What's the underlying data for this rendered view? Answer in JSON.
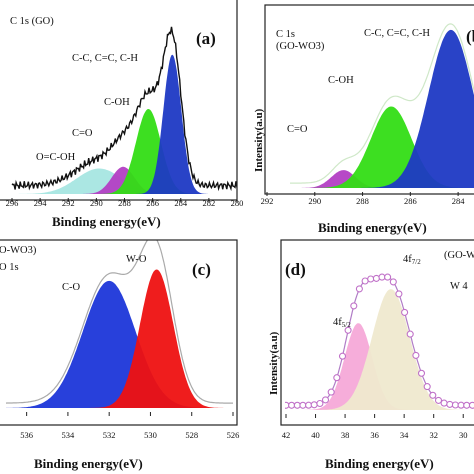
{
  "chart_data": [
    {
      "type": "area",
      "panel_label": "(a)",
      "title": "C 1s (GO)",
      "xlabel": "Binding energy(eV)",
      "ylabel": "",
      "xlim": [
        296,
        280
      ],
      "x_ticks": [
        "296",
        "294",
        "292",
        "290",
        "288",
        "286",
        "284",
        "282",
        "280"
      ],
      "ylim": [
        0,
        1.0
      ],
      "series": [
        {
          "name": "O=C-OH",
          "center": 289.8,
          "height": 0.15,
          "fwhm": 3.8,
          "color": "#a6e6e2"
        },
        {
          "name": "C=O",
          "center": 288.1,
          "height": 0.16,
          "fwhm": 1.9,
          "color": "#b33fc4"
        },
        {
          "name": "C-OH",
          "center": 286.3,
          "height": 0.5,
          "fwhm": 2.1,
          "color": "#33dd15"
        },
        {
          "name": "C-C, C=C, C-H",
          "center": 284.6,
          "height": 0.82,
          "fwhm": 1.5,
          "color": "#1d39c4"
        }
      ],
      "envelope_color": "#111111"
    },
    {
      "type": "area",
      "panel_label": "(b)",
      "title": "C 1s",
      "subtitle": "(GO-WO3)",
      "xlabel": "Binding energy(eV)",
      "ylabel": "Intensity(a.u)",
      "xlim": [
        292,
        283
      ],
      "x_ticks": [
        "292",
        "290",
        "288",
        "286",
        "284"
      ],
      "ylim": [
        0,
        1.0
      ],
      "series": [
        {
          "name": "C=O",
          "center": 288.8,
          "height": 0.11,
          "fwhm": 1.2,
          "color": "#b33fc4"
        },
        {
          "name": "C-OH",
          "center": 286.8,
          "height": 0.5,
          "fwhm": 2.0,
          "color": "#33dd15"
        },
        {
          "name": "C-C, C=C, C-H",
          "center": 284.3,
          "height": 0.97,
          "fwhm": 2.2,
          "color": "#1d39c4"
        }
      ],
      "envelope_color": "#cfe8c8"
    },
    {
      "type": "area",
      "panel_label": "(c)",
      "title": "O-WO3)",
      "subtitle": "O 1s",
      "xlabel": "Binding energy(eV)",
      "ylabel": "",
      "xlim": [
        537,
        526
      ],
      "x_ticks": [
        "536",
        "534",
        "532",
        "530",
        "528",
        "526"
      ],
      "ylim": [
        0,
        1.0
      ],
      "series": [
        {
          "name": "C-O",
          "center": 532.0,
          "height": 0.78,
          "fwhm": 3.0,
          "color": "#1c36d9"
        },
        {
          "name": "W-O",
          "center": 529.7,
          "height": 0.85,
          "fwhm": 1.9,
          "color": "#ee1111"
        }
      ],
      "envelope_color": "#aaaaaa"
    },
    {
      "type": "area",
      "panel_label": "(d)",
      "title": "(GO-W",
      "subtitle": "W 4",
      "xlabel": "Binding energy(eV)",
      "ylabel": "Intensity(a.u)",
      "xlim": [
        42,
        29
      ],
      "x_ticks": [
        "42",
        "40",
        "38",
        "36",
        "34",
        "32",
        "30"
      ],
      "ylim": [
        0,
        1.0
      ],
      "series": [
        {
          "name": "4f5/2",
          "center": 37.1,
          "height": 0.56,
          "fwhm": 2.2,
          "color": "#f5a9d8"
        },
        {
          "name": "4f7/2",
          "center": 34.9,
          "height": 0.78,
          "fwhm": 3.0,
          "color": "#efe9cf"
        }
      ],
      "envelope_color": "#b07cc6",
      "marker_color": "#c071c8"
    }
  ],
  "annotations": {
    "a": {
      "cc": "C-C, C=C, C-H",
      "coh": "C-OH",
      "co": "C=O",
      "ocoh": "O=C-OH"
    },
    "b": {
      "cc": "C-C, C=C, C-H",
      "coh": "C-OH",
      "co": "C=O"
    },
    "c": {
      "co": "C-O",
      "wo": "W-O"
    },
    "d": {
      "f52": "4f5/2",
      "f72": "4f7/2"
    }
  }
}
